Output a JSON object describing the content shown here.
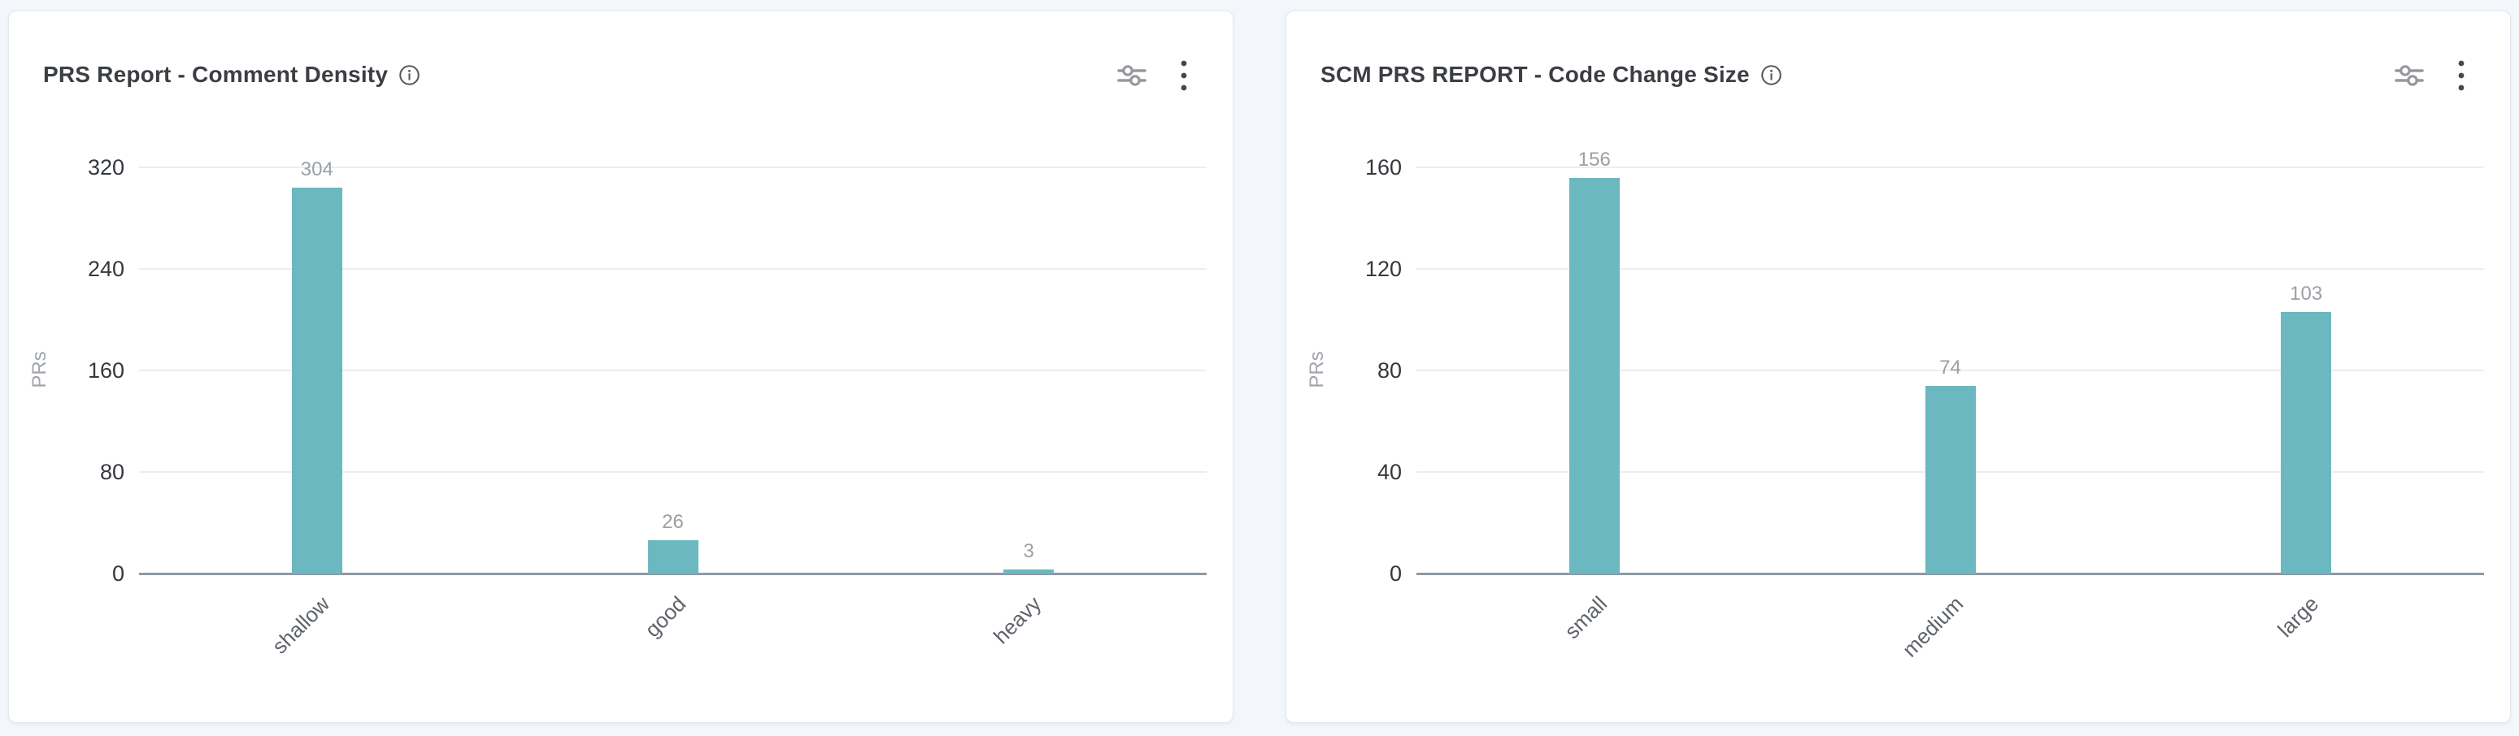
{
  "page": {
    "background_color": "#f3f6fb",
    "card_background_color": "#ffffff",
    "accent_bar_color": "#6cb8c1"
  },
  "cards": [
    {
      "title": "PRS Report - Comment Density",
      "title_icon": "info-icon",
      "actions": [
        {
          "icon": "filters-icon"
        },
        {
          "icon": "kebab-menu-icon"
        }
      ]
    },
    {
      "title": "SCM PRS REPORT - Code Change Size",
      "title_icon": "info-icon",
      "actions": [
        {
          "icon": "filters-icon"
        },
        {
          "icon": "kebab-menu-icon"
        }
      ]
    }
  ],
  "chart_data": [
    {
      "type": "bar",
      "title": "PRS Report - Comment Density",
      "categories": [
        "shallow",
        "good",
        "heavy"
      ],
      "values": [
        304,
        26,
        3
      ],
      "xlabel": "",
      "ylabel": "PRs",
      "ylim": [
        0,
        320
      ],
      "yticks": [
        0,
        80,
        160,
        240,
        320
      ],
      "grid": true,
      "legend": "none",
      "value_labels": true,
      "bar_color": "#6cb8c1"
    },
    {
      "type": "bar",
      "title": "SCM PRS REPORT - Code Change Size",
      "categories": [
        "small",
        "medium",
        "large"
      ],
      "values": [
        156,
        74,
        103
      ],
      "xlabel": "",
      "ylabel": "PRs",
      "ylim": [
        0,
        160
      ],
      "yticks": [
        0,
        40,
        80,
        120,
        160
      ],
      "grid": true,
      "legend": "none",
      "value_labels": true,
      "bar_color": "#6cb8c1"
    }
  ]
}
